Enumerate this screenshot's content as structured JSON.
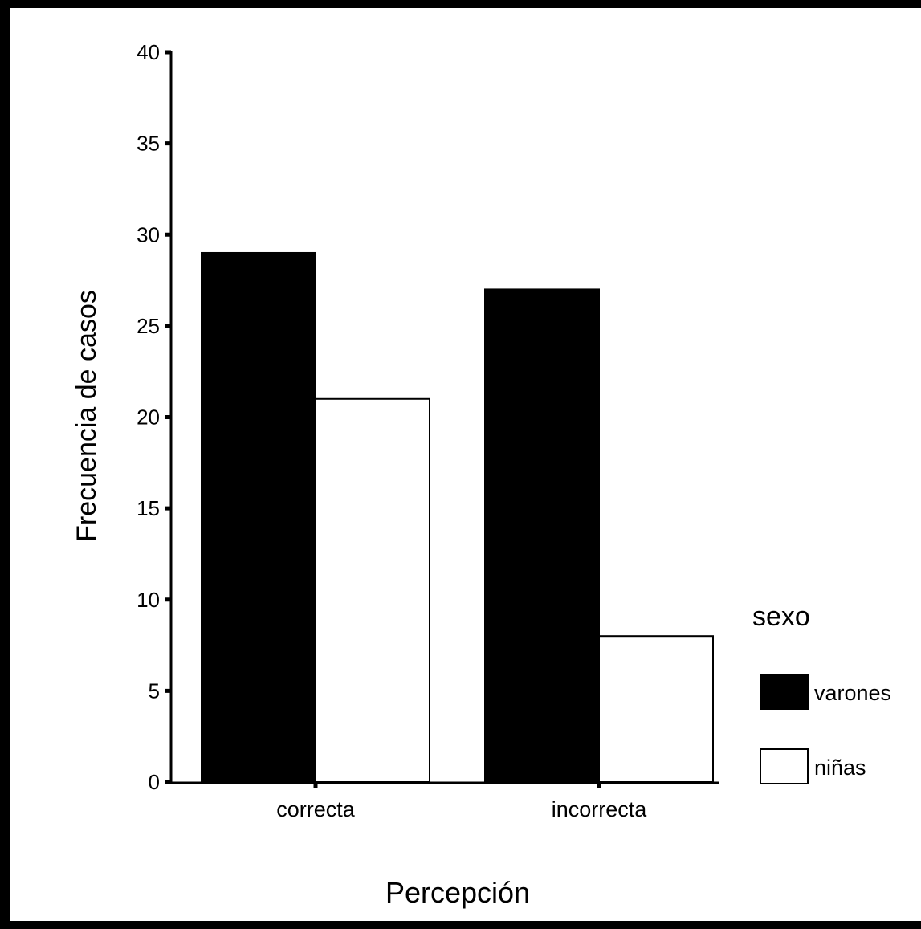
{
  "chart_data": {
    "type": "bar",
    "categories": [
      "correcta",
      "incorrecta"
    ],
    "series": [
      {
        "name": "varones",
        "values": [
          29,
          27
        ],
        "color": "#000000"
      },
      {
        "name": "niñas",
        "values": [
          21,
          8
        ],
        "color": "#ffffff"
      }
    ],
    "xlabel": "Percepción",
    "ylabel": "Frecuencia de casos",
    "ylim": [
      0,
      40
    ],
    "yticks": [
      "0",
      "5",
      "10",
      "15",
      "20",
      "25",
      "30",
      "35",
      "40"
    ],
    "grid": false,
    "legend": {
      "title": "sexo",
      "position": "right"
    }
  },
  "colors": {
    "background": "#ffffff",
    "frame": "#000000"
  }
}
